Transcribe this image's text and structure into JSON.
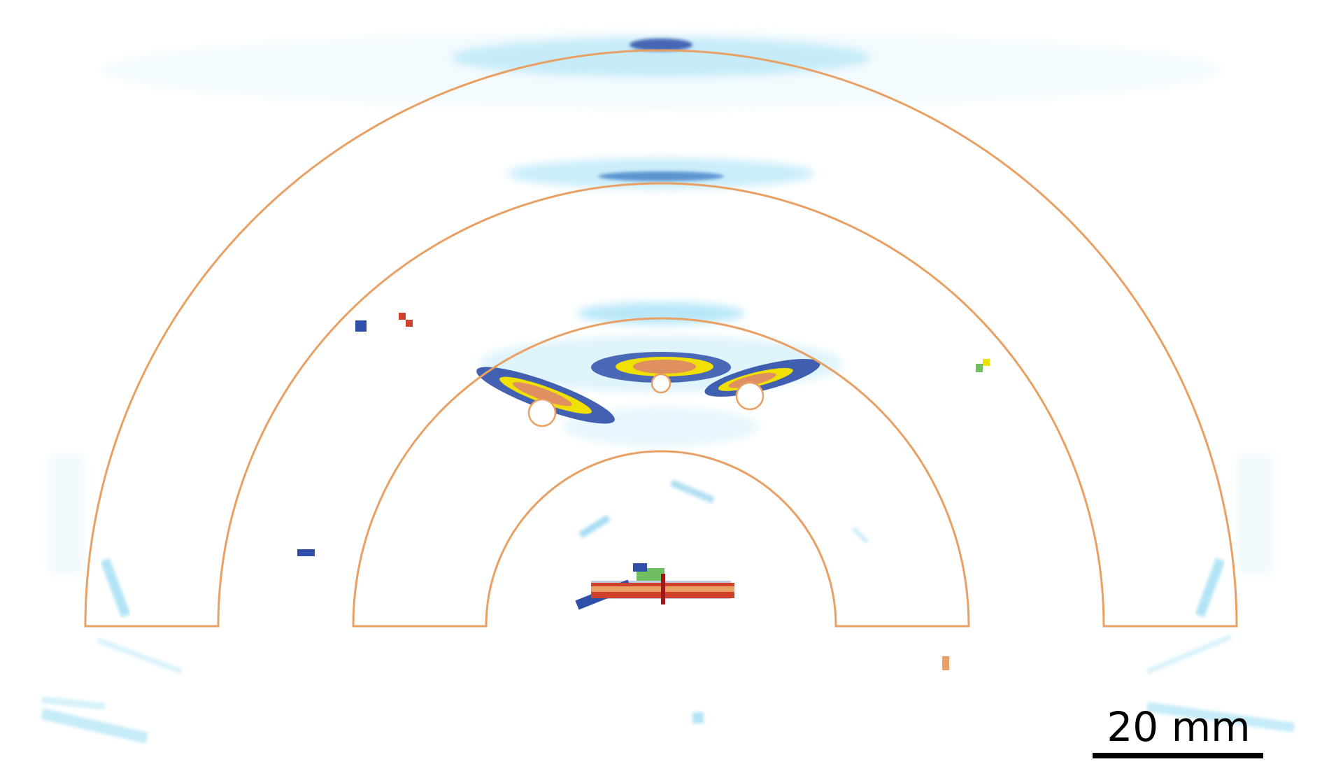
{
  "image": {
    "kind": "ultrasound reconstruction of concentric semicircular rings",
    "scale_bar": {
      "label": "20 mm",
      "length_mm": 20
    },
    "colors": {
      "background": "#ffffff",
      "ring_outline": "#e8a064",
      "weak_signal": "#7fd3f0",
      "medium_signal": "#2f6cc0",
      "strong_signal": "#f0e000",
      "peak_signal": "#d0402a",
      "scale_bar": "#000000"
    }
  }
}
